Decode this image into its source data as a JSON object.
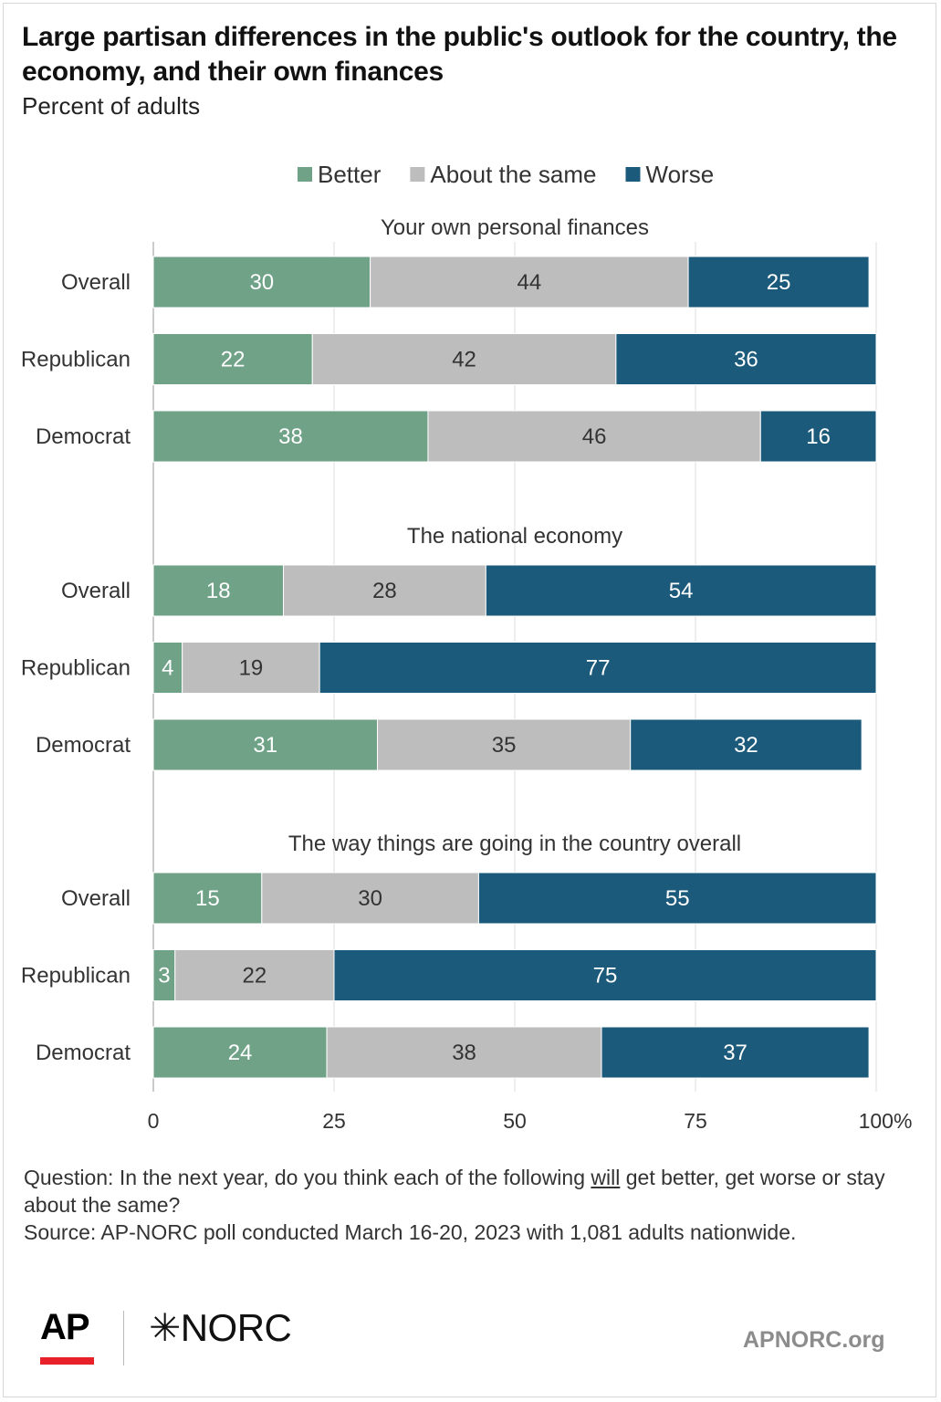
{
  "title": "Large partisan differences in the public's outlook for the country, the economy, and their own finances",
  "subtitle": "Percent of adults",
  "chart_data": {
    "type": "bar",
    "orientation": "horizontal",
    "stacked": true,
    "legend": {
      "placement": "top",
      "entries": [
        {
          "name": "Better",
          "color": "#6fa287"
        },
        {
          "name": "About the same",
          "color": "#bdbdbd"
        },
        {
          "name": "Worse",
          "color": "#1b5a7a"
        }
      ]
    },
    "xlim": [
      0,
      100
    ],
    "xticks": [
      "0",
      "25",
      "50",
      "75",
      "100%"
    ],
    "xtick_values": [
      0,
      25,
      50,
      75,
      100
    ],
    "grid": true,
    "panels": [
      {
        "title": "Your own personal finances",
        "rows": [
          {
            "label": "Overall",
            "values": [
              30,
              44,
              25
            ]
          },
          {
            "label": "Republican",
            "values": [
              22,
              42,
              36
            ]
          },
          {
            "label": "Democrat",
            "values": [
              38,
              46,
              16
            ]
          }
        ]
      },
      {
        "title": "The national economy",
        "rows": [
          {
            "label": "Overall",
            "values": [
              18,
              28,
              54
            ]
          },
          {
            "label": "Republican",
            "values": [
              4,
              19,
              77
            ]
          },
          {
            "label": "Democrat",
            "values": [
              31,
              35,
              32
            ]
          }
        ]
      },
      {
        "title": "The way things are going in the country overall",
        "rows": [
          {
            "label": "Overall",
            "values": [
              15,
              30,
              55
            ]
          },
          {
            "label": "Republican",
            "values": [
              3,
              22,
              75
            ]
          },
          {
            "label": "Democrat",
            "values": [
              24,
              38,
              37
            ]
          }
        ]
      }
    ]
  },
  "footer": {
    "question_before": "Question: In the next year, do you think each of the following ",
    "question_underlined": "will",
    "question_after": " get better, get worse or stay about the same?",
    "source": "Source: AP-NORC poll conducted March 16-20, 2023 with 1,081 adults nationwide."
  },
  "logos": {
    "ap": "AP",
    "norc": "✳NORC",
    "site": "APNORC.org"
  }
}
